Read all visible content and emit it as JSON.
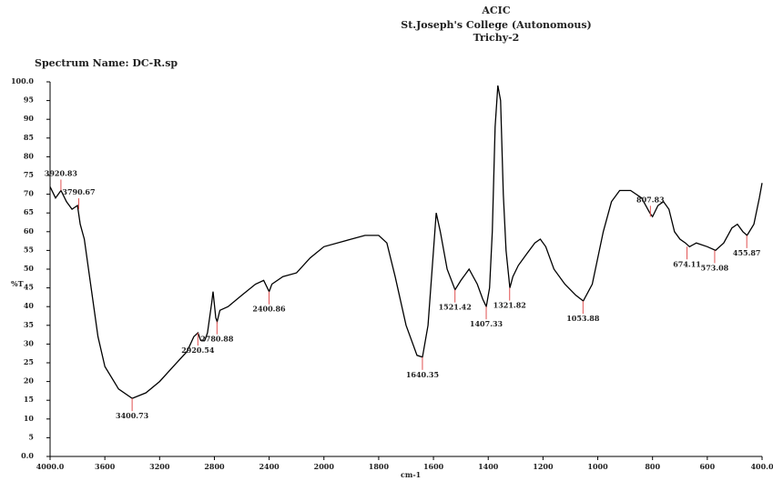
{
  "chart_data": {
    "type": "line",
    "header": [
      "ACIC",
      "St.Joseph's College (Autonomous)",
      "Trichy-2"
    ],
    "subtitle": "Spectrum Name: DC-R.sp",
    "y_label": "%T",
    "x_label": "cm-1",
    "color": "#000000",
    "peak_color": "#e05050",
    "xlim": [
      4000,
      400
    ],
    "xticks": [
      {
        "value": 4000,
        "label": "4000.0"
      },
      3600,
      3200,
      2800,
      2400,
      2000,
      1800,
      1600,
      1400,
      1200,
      1000,
      800,
      600,
      {
        "value": 400,
        "label": "400.0"
      }
    ],
    "ylim": [
      0,
      100
    ],
    "yticks": [
      {
        "value": 0,
        "label": "0.0"
      },
      5,
      10,
      15,
      20,
      25,
      30,
      35,
      40,
      45,
      50,
      55,
      60,
      65,
      70,
      75,
      80,
      85,
      90,
      95,
      {
        "value": 100,
        "label": "100.0"
      }
    ],
    "x": [
      4000,
      3960,
      3920,
      3880,
      3840,
      3800,
      3780,
      3750,
      3700,
      3650,
      3600,
      3500,
      3400,
      3300,
      3200,
      3100,
      3000,
      2950,
      2920,
      2900,
      2870,
      2850,
      2820,
      2810,
      2790,
      2780,
      2760,
      2700,
      2600,
      2500,
      2440,
      2400,
      2380,
      2300,
      2200,
      2100,
      2000,
      1900,
      1850,
      1800,
      1770,
      1740,
      1700,
      1660,
      1640,
      1620,
      1600,
      1590,
      1575,
      1550,
      1521,
      1500,
      1470,
      1440,
      1420,
      1407,
      1395,
      1385,
      1375,
      1365,
      1355,
      1345,
      1335,
      1321,
      1310,
      1290,
      1260,
      1230,
      1210,
      1190,
      1160,
      1120,
      1080,
      1053,
      1020,
      980,
      950,
      920,
      880,
      840,
      810,
      800,
      780,
      760,
      740,
      720,
      700,
      680,
      665,
      640,
      600,
      570,
      540,
      510,
      490,
      470,
      455,
      430,
      410,
      400
    ],
    "values": [
      72,
      69,
      71,
      68,
      66,
      67,
      62,
      58,
      45,
      32,
      24,
      18,
      15.5,
      17,
      20,
      24,
      28,
      32,
      33,
      31,
      31,
      33,
      41,
      44,
      37,
      36,
      39,
      40,
      43,
      46,
      47,
      44,
      46,
      48,
      49,
      53,
      56,
      58,
      59,
      59,
      57,
      48,
      35,
      27,
      26.5,
      35,
      55,
      65,
      60,
      50,
      44.5,
      47,
      50,
      46,
      42,
      40,
      45,
      60,
      88,
      99,
      95,
      70,
      55,
      45,
      48,
      51,
      54,
      57,
      58,
      56,
      50,
      46,
      43,
      41.5,
      46,
      60,
      68,
      71,
      71,
      69,
      65,
      64,
      67,
      68,
      66,
      60,
      58,
      57,
      56,
      57,
      56,
      55,
      57,
      61,
      62,
      60,
      59,
      62,
      69,
      73
    ],
    "peaks": {
      "x": [
        3920.83,
        3790.67,
        3400.73,
        2920.54,
        2780.88,
        2400.86,
        1640.35,
        1521.42,
        1407.33,
        1321.82,
        1053.88,
        807.83,
        674.11,
        573.08,
        455.87
      ],
      "y": [
        71,
        66,
        15.5,
        33,
        36,
        44,
        26.5,
        44.5,
        40,
        45,
        41.5,
        64,
        56,
        55,
        59
      ]
    }
  }
}
